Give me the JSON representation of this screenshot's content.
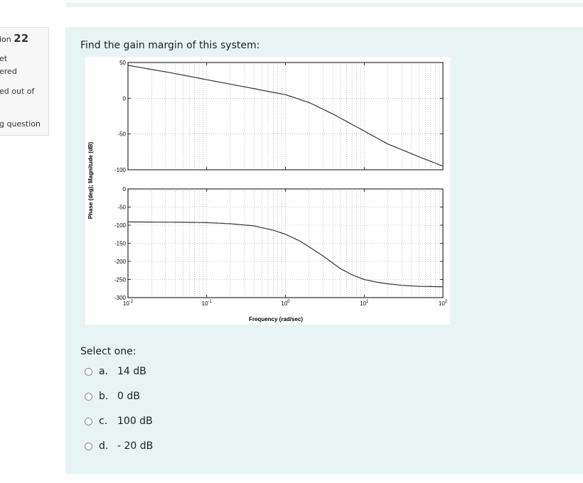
{
  "sidebar": {
    "lines": [
      "ion",
      "et",
      "ered",
      "ed out of",
      "g question"
    ],
    "question_number": "22"
  },
  "question": {
    "prompt": "Find the gain margin of this system:",
    "select_label": "Select one:",
    "options": [
      {
        "letter": "a.",
        "text": "14 dB"
      },
      {
        "letter": "b.",
        "text": "0 dB"
      },
      {
        "letter": "c.",
        "text": "100 dB"
      },
      {
        "letter": "d.",
        "text": "- 20 dB"
      }
    ]
  },
  "chart_data": [
    {
      "type": "line",
      "ylabel": "Phase (deg); Magnitude (dB)",
      "xlabel": "Frequency (rad/sec)",
      "x_scale": "log",
      "xlim": [
        0.01,
        100
      ],
      "x_ticks": [
        "10^-2",
        "10^-1",
        "10^0",
        "10^1",
        "10^2"
      ],
      "ylim": [
        -100,
        50
      ],
      "y_ticks": [
        "50",
        "0",
        "-50",
        "-100"
      ],
      "grid": true,
      "series": [
        {
          "x": [
            0.01,
            0.03,
            0.1,
            0.3,
            1,
            2,
            4,
            8,
            20,
            50,
            100
          ],
          "values": [
            46,
            37,
            26,
            16,
            5,
            -6,
            -22,
            -40,
            -64,
            -82,
            -95
          ]
        }
      ]
    },
    {
      "type": "line",
      "xlabel": "Frequency (rad/sec)",
      "x_scale": "log",
      "xlim": [
        0.01,
        100
      ],
      "x_ticks": [
        "10^-2",
        "10^-1",
        "10^0",
        "10^1",
        "10^2"
      ],
      "ylim": [
        -300,
        0
      ],
      "y_ticks": [
        "0",
        "-50",
        "-100",
        "-150",
        "-200",
        "-250",
        "-300"
      ],
      "grid": true,
      "series": [
        {
          "x": [
            0.01,
            0.05,
            0.1,
            0.2,
            0.4,
            0.7,
            1,
            1.5,
            2,
            3,
            4,
            5,
            7,
            10,
            15,
            20,
            30,
            50,
            100
          ],
          "values": [
            -91,
            -92,
            -93,
            -96,
            -102,
            -114,
            -125,
            -143,
            -160,
            -185,
            -205,
            -220,
            -237,
            -250,
            -258,
            -262,
            -266,
            -269,
            -270
          ]
        }
      ]
    }
  ]
}
